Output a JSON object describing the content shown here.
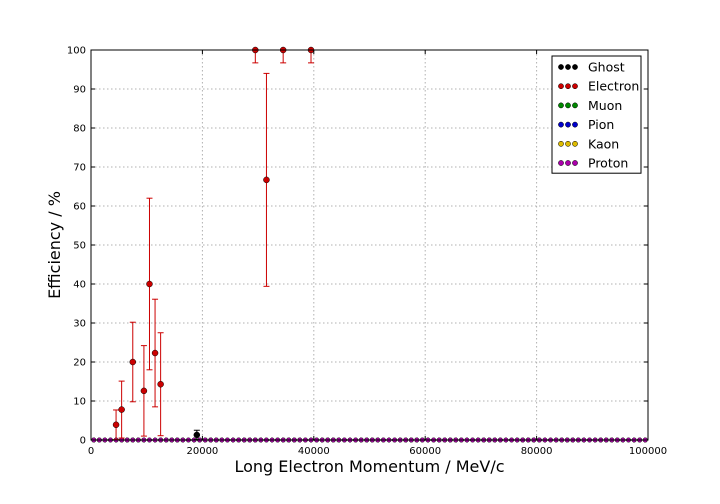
{
  "chart_data": {
    "type": "scatter",
    "title": "",
    "xlabel": "Long Electron Momentum / MeV/c",
    "ylabel": "Efficiency / %",
    "xlim": [
      0,
      100000
    ],
    "ylim": [
      0,
      100
    ],
    "xticks": [
      0,
      20000,
      40000,
      60000,
      80000,
      100000
    ],
    "yticks": [
      0,
      10,
      20,
      30,
      40,
      50,
      60,
      70,
      80,
      90,
      100
    ],
    "grid": true,
    "legend_position": "top-right",
    "baseline_points": 100,
    "series": [
      {
        "name": "Ghost",
        "color": "#000000",
        "points": [
          {
            "x": 19000,
            "y": 1.3,
            "err": 1.2
          }
        ]
      },
      {
        "name": "Electron",
        "color": "#cc0000",
        "points": [
          {
            "x": 4500,
            "y": 3.9,
            "err": 3.8
          },
          {
            "x": 5500,
            "y": 7.8,
            "err": 7.3
          },
          {
            "x": 7500,
            "y": 20.0,
            "err": 10.2
          },
          {
            "x": 9500,
            "y": 12.6,
            "err": 11.6
          },
          {
            "x": 10500,
            "y": 40.0,
            "err": 22.0
          },
          {
            "x": 11500,
            "y": 22.3,
            "err": 13.8
          },
          {
            "x": 12500,
            "y": 14.3,
            "err": 13.2
          },
          {
            "x": 29500,
            "y": 100.0,
            "err": 3.3
          },
          {
            "x": 31500,
            "y": 66.7,
            "err": 27.3
          },
          {
            "x": 34500,
            "y": 100.0,
            "err": 3.3
          },
          {
            "x": 39500,
            "y": 100.0,
            "err": 3.3
          }
        ]
      },
      {
        "name": "Muon",
        "color": "#008800",
        "points": []
      },
      {
        "name": "Pion",
        "color": "#0000cc",
        "points": []
      },
      {
        "name": "Kaon",
        "color": "#ddbb00",
        "points": []
      },
      {
        "name": "Proton",
        "color": "#aa00aa",
        "points": []
      }
    ]
  }
}
